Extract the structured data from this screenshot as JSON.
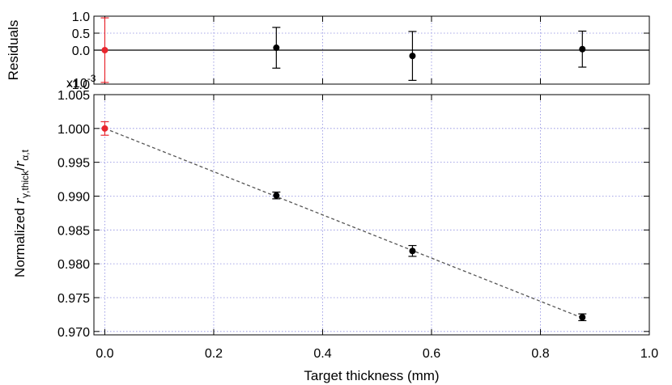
{
  "chart_data": [
    {
      "type": "scatter",
      "panel": "residuals",
      "title": "",
      "xlabel": "",
      "ylabel": "Residuals",
      "y_multiplier_label": "x10",
      "y_multiplier_exponent": "-3",
      "xlim": [
        -0.02,
        1.0
      ],
      "ylim": [
        -1.0,
        1.0
      ],
      "xticks": [
        "0.0",
        "0.2",
        "0.4",
        "0.6",
        "0.8",
        "1.0"
      ],
      "yticks": [
        {
          "value": 1.0,
          "label": "1.0"
        },
        {
          "value": 0.5,
          "label": "0.5"
        },
        {
          "value": 0.0,
          "label": "0.0"
        },
        {
          "value": -1.0,
          "label": "-1.0"
        }
      ],
      "grid": true,
      "zero_line": 0.0,
      "series": [
        {
          "color": "#e8262e",
          "points": [
            {
              "x": 0.0,
              "y": 0.0,
              "err": 0.95
            }
          ]
        },
        {
          "color": "#000000",
          "points": [
            {
              "x": 0.315,
              "y": 0.07,
              "err": 0.6
            },
            {
              "x": 0.565,
              "y": -0.17,
              "err": 0.72
            },
            {
              "x": 0.877,
              "y": 0.03,
              "err": 0.53
            }
          ]
        }
      ]
    },
    {
      "type": "scatter",
      "panel": "main",
      "title": "",
      "xlabel": "Target thickness (mm)",
      "ylabel_text": "Normalized ",
      "ylabel_r": "r",
      "ylabel_sub1": "γ,thick",
      "ylabel_slash": "/",
      "ylabel_sub2": "α,t",
      "xlim": [
        -0.02,
        1.0
      ],
      "ylim": [
        0.9695,
        1.005
      ],
      "xticks": [
        {
          "value": 0.0,
          "label": "0.0"
        },
        {
          "value": 0.2,
          "label": "0.2"
        },
        {
          "value": 0.4,
          "label": "0.4"
        },
        {
          "value": 0.6,
          "label": "0.6"
        },
        {
          "value": 0.8,
          "label": "0.8"
        },
        {
          "value": 1.0,
          "label": "1.0"
        }
      ],
      "yticks": [
        {
          "value": 1.005,
          "label": "1.005"
        },
        {
          "value": 1.0,
          "label": "1.000"
        },
        {
          "value": 0.995,
          "label": "0.995"
        },
        {
          "value": 0.99,
          "label": "0.990"
        },
        {
          "value": 0.985,
          "label": "0.985"
        },
        {
          "value": 0.98,
          "label": "0.980"
        },
        {
          "value": 0.975,
          "label": "0.975"
        },
        {
          "value": 0.97,
          "label": "0.970"
        }
      ],
      "grid": true,
      "fit_line": {
        "x": [
          0.0,
          0.877
        ],
        "y": [
          1.0,
          0.972
        ]
      },
      "series": [
        {
          "color": "#e8262e",
          "points": [
            {
              "x": 0.0,
              "y": 1.0,
              "err": 0.001
            }
          ]
        },
        {
          "color": "#000000",
          "points": [
            {
              "x": 0.315,
              "y": 0.9901,
              "err": 0.0005
            },
            {
              "x": 0.565,
              "y": 0.9819,
              "err": 0.0008
            },
            {
              "x": 0.877,
              "y": 0.9721,
              "err": 0.0005
            }
          ]
        }
      ]
    }
  ]
}
